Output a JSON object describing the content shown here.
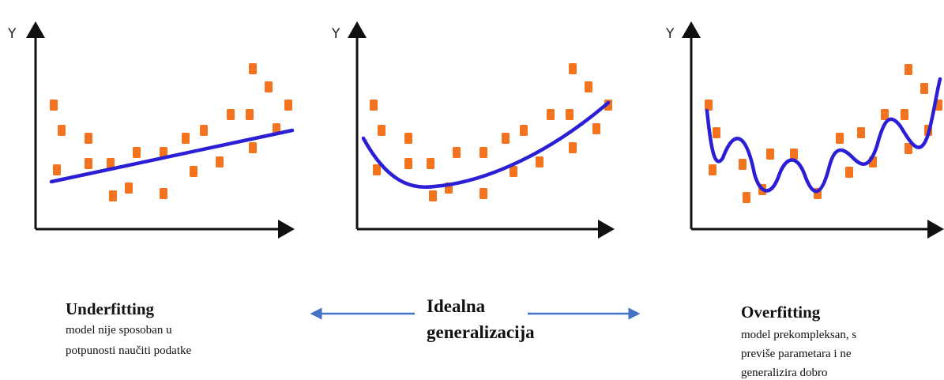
{
  "panels": [
    {
      "axis_label": "Y"
    },
    {
      "axis_label": "Y"
    },
    {
      "axis_label": "Y"
    }
  ],
  "left": {
    "title": "Underfitting",
    "lines": [
      "model nije sposoban u",
      "potpunosti naučiti podatke"
    ]
  },
  "middle": {
    "lines": [
      "Idealna",
      "generalizacija"
    ]
  },
  "right": {
    "title": "Overfitting",
    "lines": [
      "model prekompleksan, s",
      "previše parametara i ne",
      "generalizira dobro"
    ]
  }
}
